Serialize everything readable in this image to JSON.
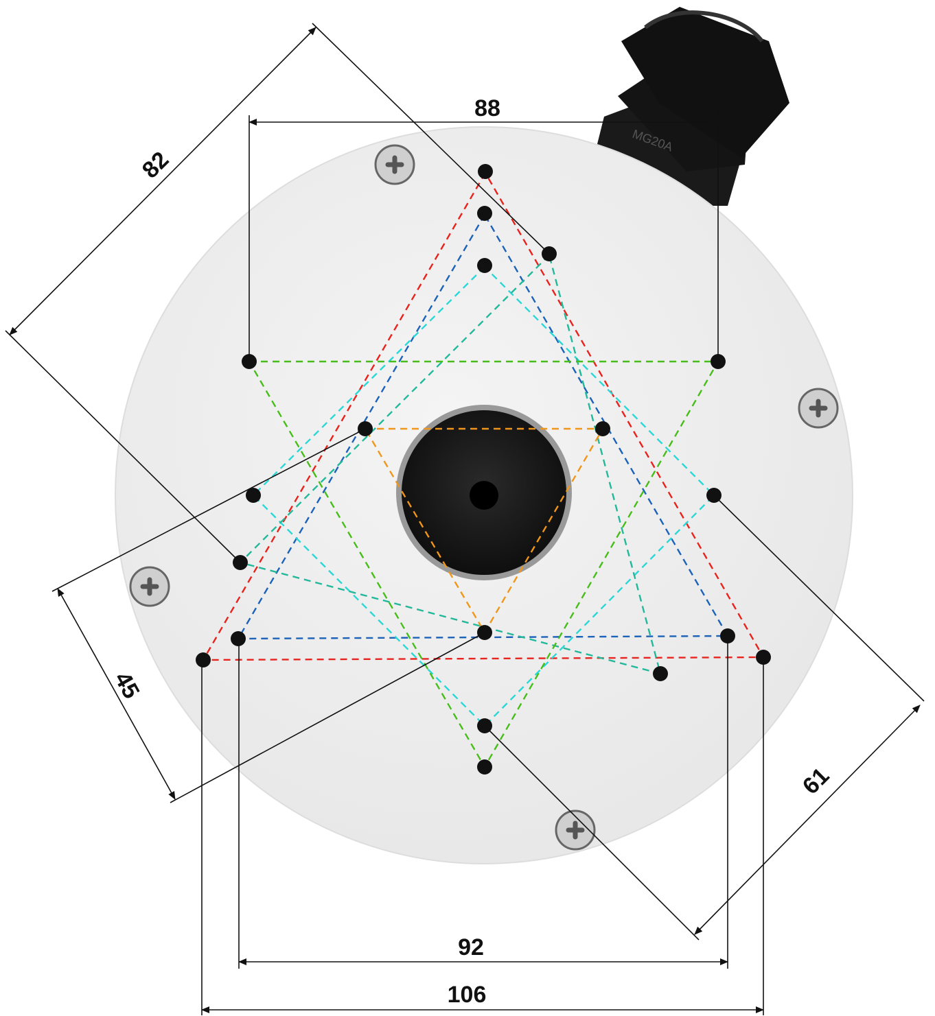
{
  "dimensions": [
    "88",
    "82",
    "45",
    "61",
    "92",
    "106"
  ],
  "gland_marking": "MG20A"
}
